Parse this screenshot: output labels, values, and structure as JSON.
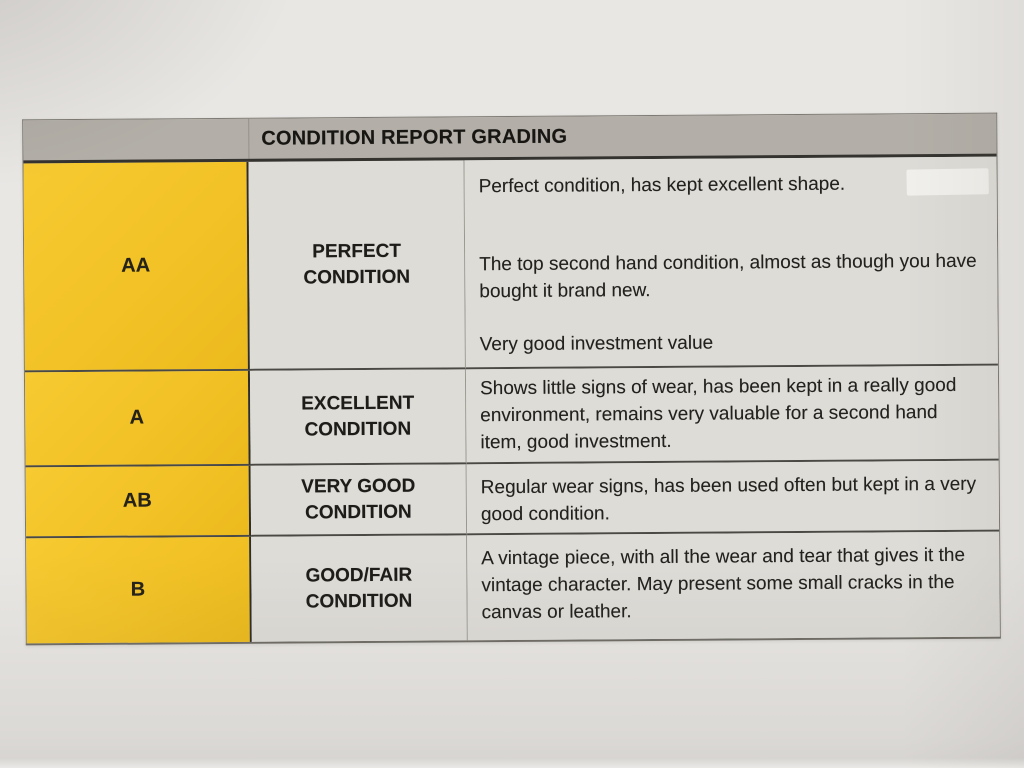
{
  "document": {
    "header": {
      "title": "CONDITION REPORT GRADING"
    },
    "rows": [
      {
        "grade": "AA",
        "condition": "PERFECT CONDITION",
        "description_paragraphs": [
          "Perfect condition, has kept excellent shape.",
          "The top second hand condition, almost as though you have bought it brand new.",
          "Very good investment value"
        ]
      },
      {
        "grade": "A",
        "condition": "EXCELLENT CONDITION",
        "description_paragraphs": [
          "Shows little signs of wear, has been kept in a really good environment, remains very valuable for a second hand item, good investment."
        ]
      },
      {
        "grade": "AB",
        "condition": "VERY GOOD CONDITION",
        "description_paragraphs": [
          "Regular wear signs, has been used often but kept in a very good condition."
        ]
      },
      {
        "grade": "B",
        "condition": "GOOD/FAIR CONDITION",
        "description_paragraphs": [
          "A vintage piece, with all the wear and tear that gives it the vintage character. May present some small cracks in the canvas or leather."
        ]
      }
    ],
    "colors": {
      "grade_cell_yellow": "#f2c226",
      "header_bar_gray": "#b3afa8",
      "cell_background_gray": "#dedcd7",
      "paper_background": "#e9e7e4",
      "text": "#201f1c"
    }
  }
}
